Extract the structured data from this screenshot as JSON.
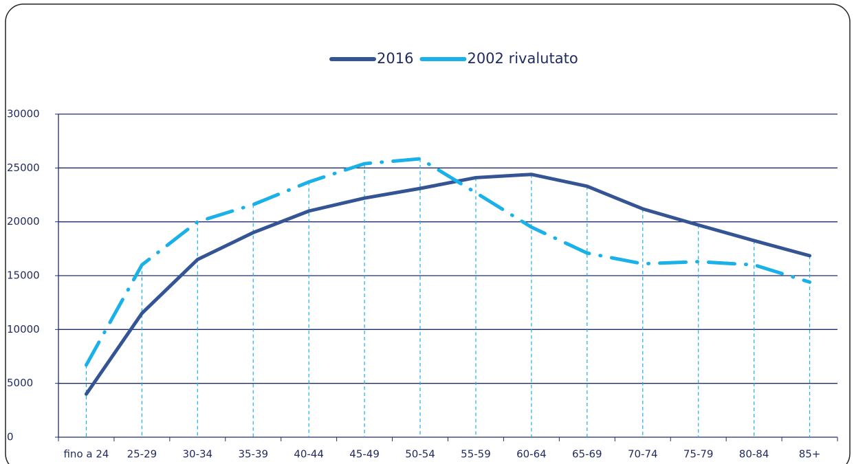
{
  "chart_data": {
    "type": "line",
    "categories": [
      "fino a 24",
      "25-29",
      "30-34",
      "35-39",
      "40-44",
      "45-49",
      "50-54",
      "55-59",
      "60-64",
      "65-69",
      "70-74",
      "75-79",
      "80-84",
      "85+"
    ],
    "series": [
      {
        "name": "2016",
        "color": "#345493",
        "values": [
          4000,
          11500,
          16500,
          19000,
          21000,
          22200,
          23100,
          24100,
          24400,
          23300,
          21200,
          19700,
          18250,
          16850
        ]
      },
      {
        "name": "2002 rivalutato",
        "color": "#1ab0e8",
        "values": [
          6700,
          16000,
          20000,
          21600,
          23700,
          25400,
          25850,
          22700,
          19500,
          17100,
          16100,
          16300,
          16000,
          14400
        ]
      }
    ],
    "ylim": [
      0,
      30000
    ],
    "yticks": [
      0,
      5000,
      10000,
      15000,
      20000,
      25000,
      30000
    ],
    "grid": true,
    "legend": "top"
  }
}
